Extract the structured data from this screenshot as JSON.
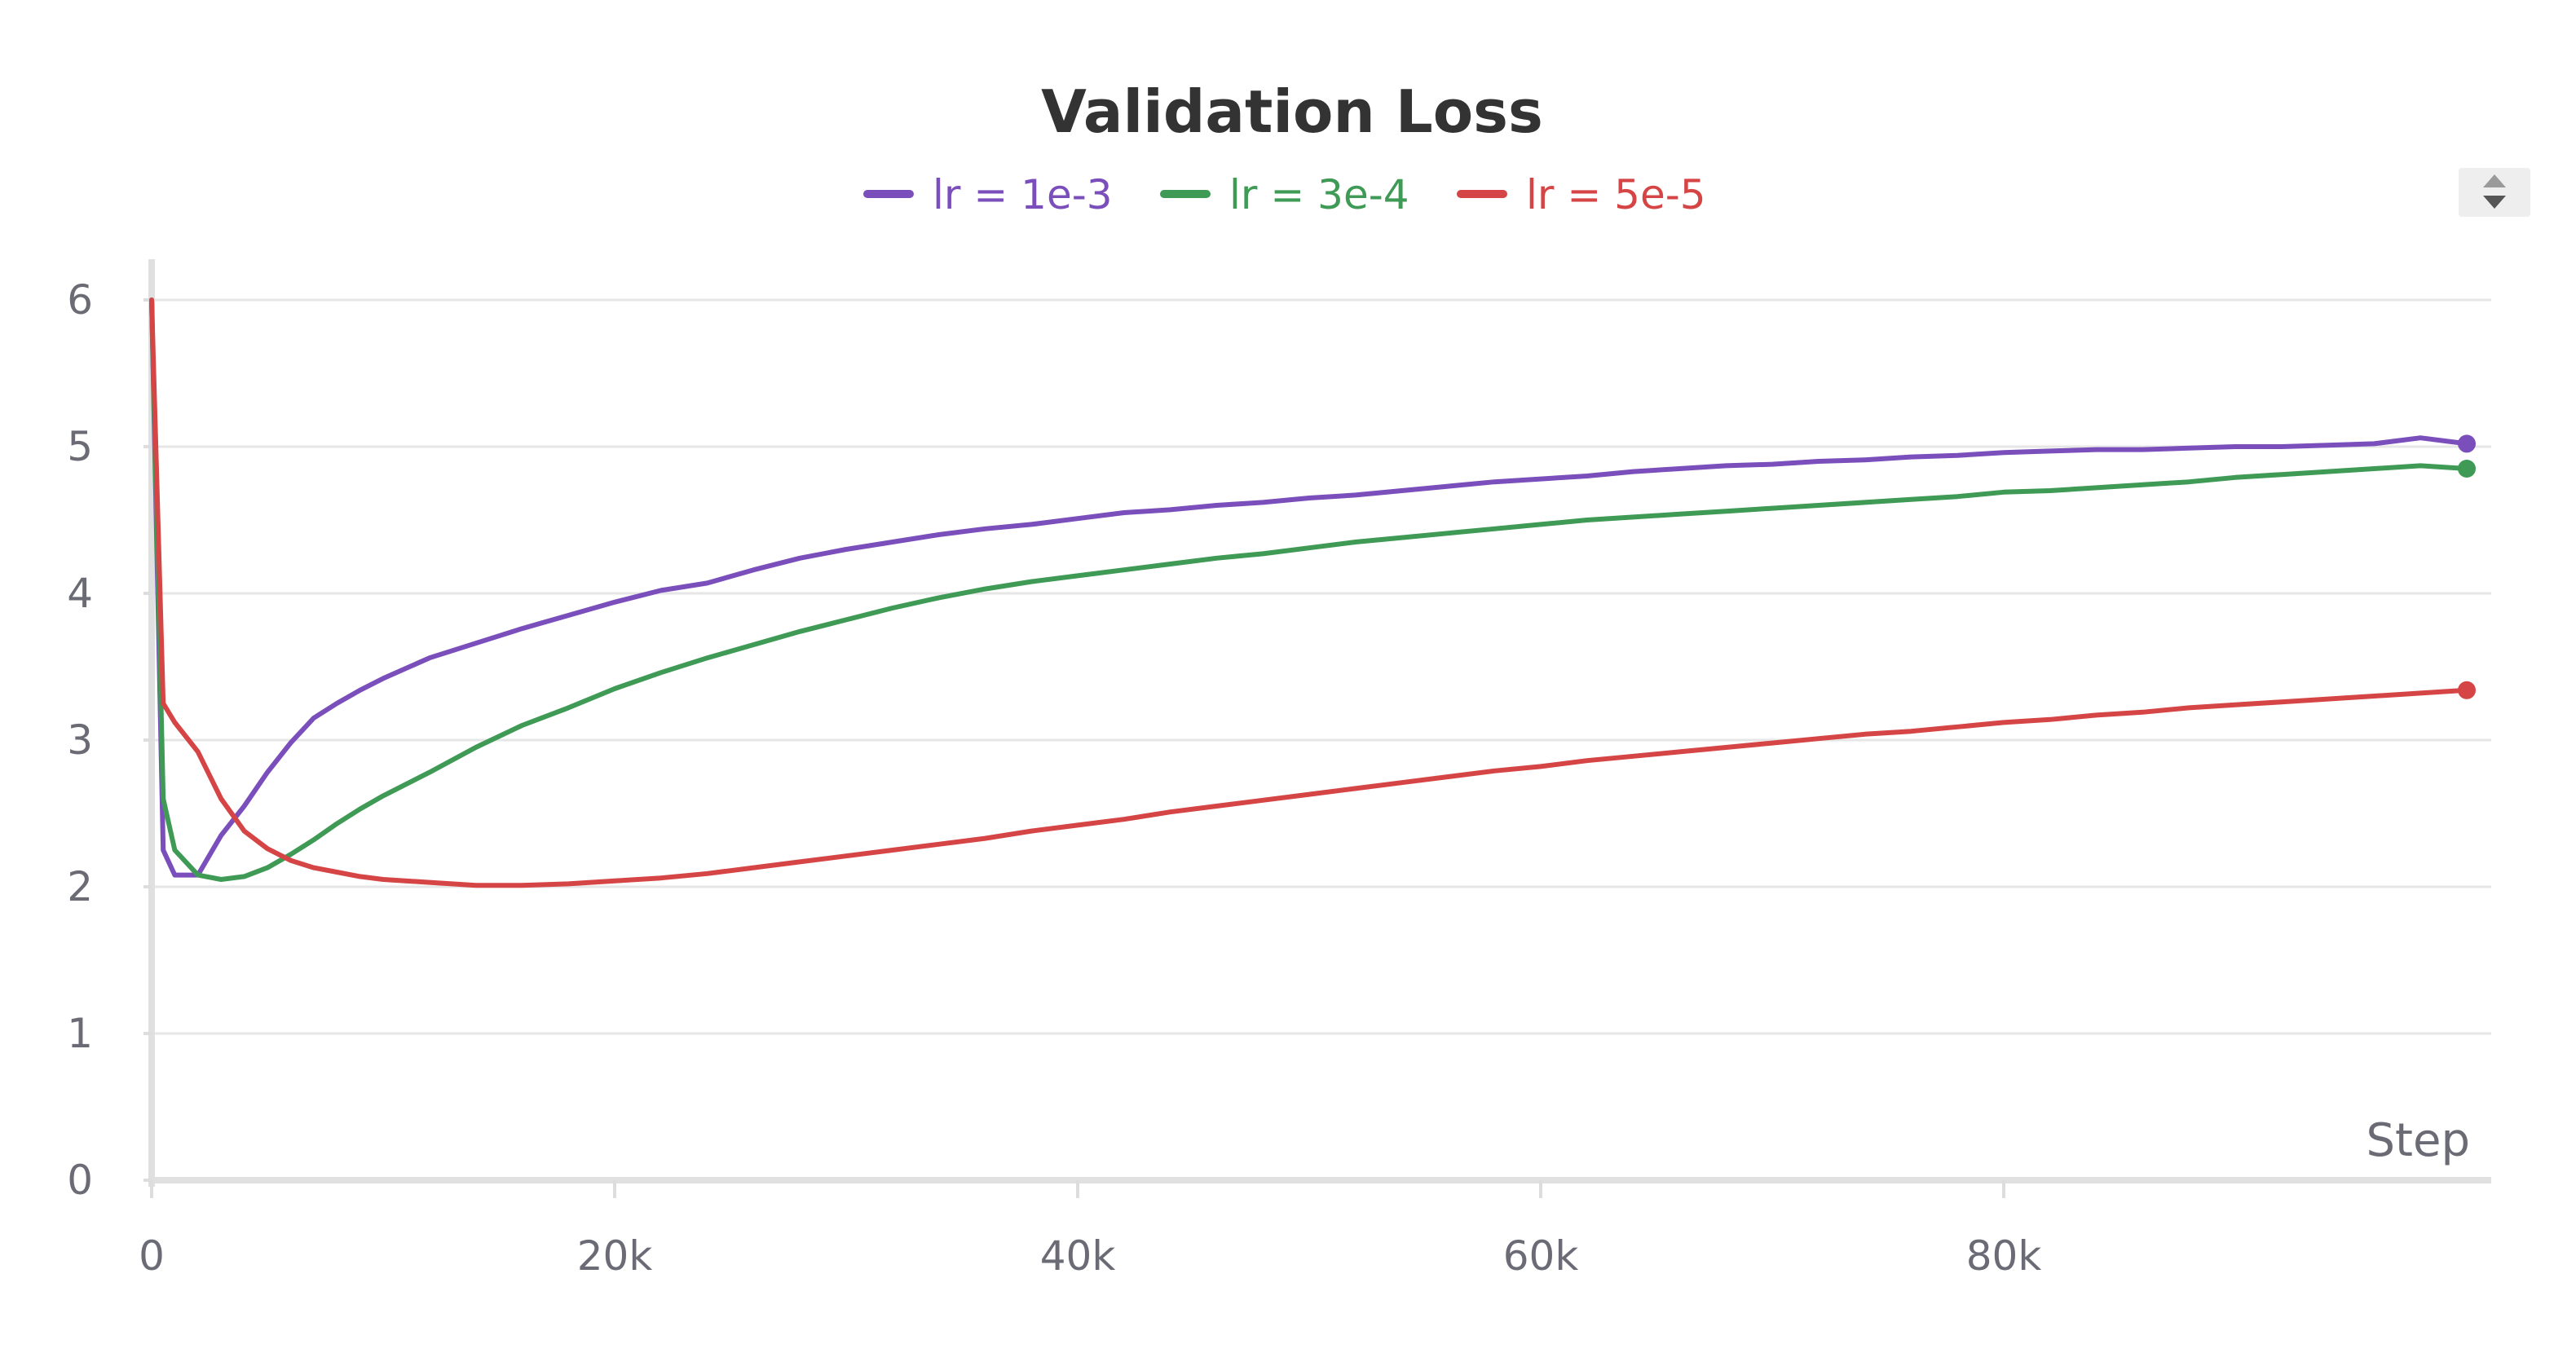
{
  "chart_data": {
    "type": "line",
    "title": "Validation Loss",
    "xlabel": "Step",
    "ylabel": "",
    "xlim": [
      0,
      100000
    ],
    "ylim": [
      0,
      6
    ],
    "x_ticks": [
      0,
      20000,
      40000,
      60000,
      80000
    ],
    "x_tick_labels": [
      "0",
      "20k",
      "40k",
      "60k",
      "80k"
    ],
    "y_ticks": [
      0,
      1,
      2,
      3,
      4,
      5,
      6
    ],
    "y_tick_labels": [
      "0",
      "1",
      "2",
      "3",
      "4",
      "5",
      "6"
    ],
    "grid": true,
    "legend_position": "top-center",
    "x": [
      0,
      500,
      1000,
      2000,
      3000,
      4000,
      5000,
      6000,
      7000,
      8000,
      9000,
      10000,
      12000,
      14000,
      16000,
      18000,
      20000,
      22000,
      24000,
      26000,
      28000,
      30000,
      32000,
      34000,
      36000,
      38000,
      40000,
      42000,
      44000,
      46000,
      48000,
      50000,
      52000,
      54000,
      56000,
      58000,
      60000,
      62000,
      64000,
      66000,
      68000,
      70000,
      72000,
      74000,
      76000,
      78000,
      80000,
      82000,
      84000,
      86000,
      88000,
      90000,
      92000,
      94000,
      96000,
      98000,
      100000
    ],
    "series": [
      {
        "name": "lr = 1e-3",
        "color": "#7b4fbb",
        "values": [
          6.0,
          2.25,
          2.08,
          2.08,
          2.35,
          2.55,
          2.78,
          2.98,
          3.15,
          3.25,
          3.34,
          3.42,
          3.56,
          3.66,
          3.76,
          3.85,
          3.94,
          4.02,
          4.07,
          4.16,
          4.24,
          4.3,
          4.35,
          4.4,
          4.44,
          4.47,
          4.51,
          4.55,
          4.57,
          4.6,
          4.62,
          4.65,
          4.67,
          4.7,
          4.73,
          4.76,
          4.78,
          4.8,
          4.83,
          4.85,
          4.87,
          4.88,
          4.9,
          4.91,
          4.93,
          4.94,
          4.96,
          4.97,
          4.98,
          4.98,
          4.99,
          5.0,
          5.0,
          5.01,
          5.02,
          5.06,
          5.02
        ]
      },
      {
        "name": "lr = 3e-4",
        "color": "#3f9a55",
        "values": [
          6.0,
          2.6,
          2.25,
          2.08,
          2.05,
          2.07,
          2.13,
          2.22,
          2.32,
          2.43,
          2.53,
          2.62,
          2.78,
          2.95,
          3.1,
          3.22,
          3.35,
          3.46,
          3.56,
          3.65,
          3.74,
          3.82,
          3.9,
          3.97,
          4.03,
          4.08,
          4.12,
          4.16,
          4.2,
          4.24,
          4.27,
          4.31,
          4.35,
          4.38,
          4.41,
          4.44,
          4.47,
          4.5,
          4.52,
          4.54,
          4.56,
          4.58,
          4.6,
          4.62,
          4.64,
          4.66,
          4.69,
          4.7,
          4.72,
          4.74,
          4.76,
          4.79,
          4.81,
          4.83,
          4.85,
          4.87,
          4.85
        ]
      },
      {
        "name": "lr = 5e-5",
        "color": "#d64545",
        "values": [
          6.0,
          3.25,
          3.12,
          2.92,
          2.6,
          2.38,
          2.26,
          2.18,
          2.13,
          2.1,
          2.07,
          2.05,
          2.03,
          2.01,
          2.01,
          2.02,
          2.04,
          2.06,
          2.09,
          2.13,
          2.17,
          2.21,
          2.25,
          2.29,
          2.33,
          2.38,
          2.42,
          2.46,
          2.51,
          2.55,
          2.59,
          2.63,
          2.67,
          2.71,
          2.75,
          2.79,
          2.82,
          2.86,
          2.89,
          2.92,
          2.95,
          2.98,
          3.01,
          3.04,
          3.06,
          3.09,
          3.12,
          3.14,
          3.17,
          3.19,
          3.22,
          3.24,
          3.26,
          3.28,
          3.3,
          3.32,
          3.34
        ]
      }
    ]
  },
  "controls": {
    "scroll_icon": "up-down-arrows-icon"
  }
}
